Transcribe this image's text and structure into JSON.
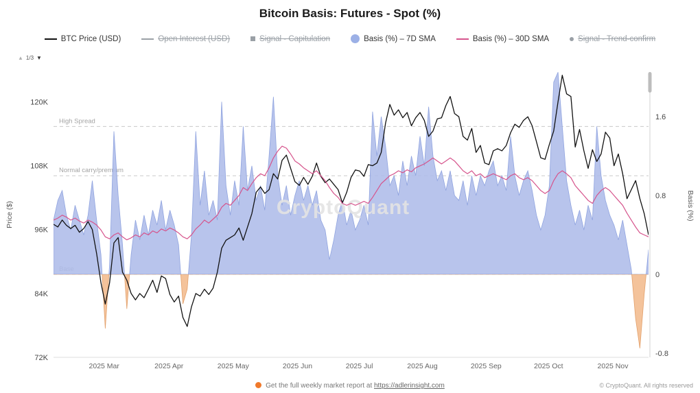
{
  "header": {
    "title": "Bitcoin Basis: Futures - Spot (%)"
  },
  "pager": {
    "up": "▲",
    "label": "1/3",
    "down": "▼"
  },
  "watermark": "CryptoQuant",
  "legend": {
    "position": "top",
    "items": [
      {
        "label": "BTC Price (USD)",
        "marker": "line",
        "color": "#111111",
        "disabled": false
      },
      {
        "label": "Open Interest (USD)",
        "marker": "line",
        "color": "#9aa0a6",
        "disabled": true
      },
      {
        "label": "Signal - Capitulation",
        "marker": "square",
        "color": "#9aa0a6",
        "disabled": true
      },
      {
        "label": "Basis (%) – 7D SMA",
        "marker": "circle",
        "color": "#9cb0e6",
        "disabled": false
      },
      {
        "label": "Basis (%) – 30D SMA",
        "marker": "line",
        "color": "#d6548c",
        "disabled": false
      },
      {
        "label": "Signal - Trend-confirm",
        "marker": "dot",
        "color": "#9aa0a6",
        "disabled": true
      }
    ]
  },
  "footer": {
    "report_text": "Get the full weekly market report at ",
    "report_link": "https://adlerinsight.com",
    "copyright": "© CryptoQuant. All rights reserved"
  },
  "chart_data": {
    "type": "mixed",
    "title": "Bitcoin Basis: Futures - Spot (%)",
    "grid": "levels-only",
    "left_axis": {
      "label": "Price ($)",
      "ticks": [
        "120K",
        "108K",
        "96K",
        "84K",
        "72K"
      ],
      "tick_values": [
        120,
        108,
        96,
        84,
        72
      ],
      "domain": [
        72,
        125.6
      ]
    },
    "right_axis": {
      "label": "Basis (%)",
      "ticks": [
        "1.6",
        "0.8",
        "0",
        "-0.8"
      ],
      "tick_values": [
        1.6,
        0.8,
        0,
        -0.8
      ],
      "domain": [
        -0.842,
        2.052
      ]
    },
    "x_axis": {
      "ticks": [
        {
          "label": "2025 Mar",
          "f": 0.085
        },
        {
          "label": "2025 Apr",
          "f": 0.194
        },
        {
          "label": "2025 May",
          "f": 0.302
        },
        {
          "label": "2025 Jun",
          "f": 0.41
        },
        {
          "label": "2025 Jul",
          "f": 0.514
        },
        {
          "label": "2025 Aug",
          "f": 0.62
        },
        {
          "label": "2025 Sep",
          "f": 0.727
        },
        {
          "label": "2025 Oct",
          "f": 0.832
        },
        {
          "label": "2025 Nov",
          "f": 0.94
        }
      ]
    },
    "levels": [
      {
        "label": "High Spread",
        "value": 1.5
      },
      {
        "label": "Normal carry/premium",
        "value": 1.0
      },
      {
        "label": "Base",
        "value": 0
      }
    ],
    "series": [
      {
        "name": "BTC Price (USD)",
        "type": "line",
        "axis": "price",
        "color": "#111111",
        "unit": "K USD",
        "values": [
          97.0,
          96.5,
          97.8,
          96.8,
          96.2,
          96.8,
          95.5,
          96.2,
          97.5,
          96.0,
          91.5,
          86.0,
          82.0,
          86.0,
          93.5,
          94.5,
          88.0,
          86.5,
          84.0,
          82.8,
          84.0,
          83.2,
          84.8,
          86.5,
          84.2,
          87.3,
          86.8,
          83.8,
          82.4,
          83.5,
          79.5,
          77.8,
          81.5,
          84.0,
          83.5,
          84.8,
          83.8,
          85.0,
          88.0,
          92.5,
          94.0,
          94.5,
          95.0,
          96.3,
          94.0,
          96.5,
          99.0,
          103.0,
          104.0,
          102.8,
          103.5,
          106.5,
          105.5,
          109.0,
          110.0,
          107.5,
          105.0,
          104.3,
          105.8,
          104.5,
          106.0,
          108.5,
          106.0,
          104.8,
          105.5,
          104.5,
          103.5,
          101.0,
          103.0,
          105.8,
          107.2,
          107.0,
          106.0,
          108.2,
          108.0,
          108.5,
          110.5,
          116.0,
          119.5,
          117.5,
          118.5,
          117.0,
          118.0,
          115.5,
          117.0,
          118.0,
          116.5,
          113.5,
          114.5,
          116.8,
          117.0,
          119.3,
          121.0,
          117.8,
          117.2,
          113.5,
          112.8,
          115.0,
          110.5,
          111.8,
          108.5,
          108.2,
          110.8,
          111.2,
          110.8,
          111.8,
          114.2,
          115.8,
          115.2,
          116.5,
          117.2,
          115.5,
          112.5,
          109.5,
          109.2,
          112.0,
          114.5,
          120.0,
          125.0,
          121.5,
          121.0,
          111.5,
          114.8,
          110.8,
          107.5,
          111.0,
          108.8,
          110.2,
          114.3,
          113.2,
          108.0,
          110.2,
          106.5,
          101.8,
          103.5,
          105.2,
          101.8,
          99.0,
          95.0
        ]
      },
      {
        "name": "Basis (%) – 7D SMA",
        "type": "area",
        "axis": "basis",
        "color": "#aebce9",
        "edge_color": "#8fa3df",
        "negative_color": "#f3c096",
        "unit": "%",
        "values": [
          0.55,
          0.75,
          0.85,
          0.6,
          0.45,
          0.7,
          0.55,
          0.4,
          0.6,
          0.95,
          0.55,
          0.2,
          -0.55,
          0.1,
          1.45,
          0.8,
          0.3,
          -0.35,
          0.2,
          0.55,
          0.35,
          0.6,
          0.4,
          0.65,
          0.5,
          0.75,
          0.45,
          0.65,
          0.5,
          0.3,
          -0.3,
          -0.15,
          0.4,
          1.45,
          0.7,
          1.05,
          0.6,
          0.75,
          0.55,
          1.75,
          0.9,
          0.6,
          0.95,
          0.7,
          1.5,
          0.85,
          1.1,
          0.75,
          0.9,
          0.65,
          1.2,
          1.8,
          1.0,
          0.7,
          0.9,
          0.6,
          0.8,
          0.95,
          0.75,
          0.9,
          0.7,
          0.85,
          0.55,
          0.45,
          0.15,
          0.35,
          0.6,
          0.75,
          0.5,
          0.65,
          0.45,
          0.55,
          0.7,
          0.5,
          1.65,
          1.2,
          1.6,
          1.3,
          0.9,
          1.0,
          0.8,
          1.15,
          0.9,
          1.2,
          1.0,
          1.4,
          1.1,
          1.7,
          1.2,
          0.95,
          1.05,
          0.85,
          1.05,
          0.8,
          0.75,
          0.95,
          0.7,
          1.0,
          0.8,
          1.0,
          0.9,
          1.05,
          1.15,
          0.9,
          1.0,
          0.85,
          1.4,
          1.0,
          0.8,
          0.95,
          1.05,
          0.85,
          0.6,
          0.45,
          0.6,
          0.9,
          1.95,
          2.05,
          1.5,
          0.95,
          0.7,
          0.5,
          0.65,
          0.45,
          0.7,
          0.55,
          1.5,
          1.0,
          0.75,
          0.6,
          0.5,
          0.35,
          0.55,
          0.3,
          0.05,
          -0.45,
          -0.75,
          -0.2,
          0.25
        ]
      },
      {
        "name": "Basis (%) – 30D SMA",
        "type": "line",
        "axis": "basis",
        "color": "#d6548c",
        "unit": "%",
        "values": [
          0.55,
          0.57,
          0.6,
          0.58,
          0.55,
          0.57,
          0.54,
          0.52,
          0.55,
          0.53,
          0.5,
          0.45,
          0.38,
          0.36,
          0.4,
          0.42,
          0.38,
          0.35,
          0.37,
          0.4,
          0.38,
          0.42,
          0.4,
          0.44,
          0.42,
          0.46,
          0.44,
          0.47,
          0.45,
          0.42,
          0.38,
          0.36,
          0.4,
          0.46,
          0.5,
          0.55,
          0.52,
          0.56,
          0.6,
          0.68,
          0.72,
          0.7,
          0.75,
          0.8,
          0.88,
          0.85,
          0.92,
          0.98,
          1.02,
          1.0,
          1.08,
          1.18,
          1.25,
          1.3,
          1.28,
          1.22,
          1.15,
          1.12,
          1.08,
          1.05,
          1.02,
          1.05,
          1.0,
          0.95,
          0.88,
          0.82,
          0.78,
          0.72,
          0.7,
          0.72,
          0.7,
          0.72,
          0.74,
          0.72,
          0.78,
          0.85,
          0.92,
          0.96,
          1.0,
          1.02,
          1.05,
          1.03,
          1.06,
          1.04,
          1.08,
          1.1,
          1.12,
          1.15,
          1.18,
          1.15,
          1.12,
          1.15,
          1.18,
          1.15,
          1.1,
          1.05,
          1.02,
          1.05,
          1.0,
          1.02,
          0.98,
          1.0,
          1.02,
          1.0,
          0.98,
          0.96,
          1.0,
          1.02,
          0.98,
          0.96,
          0.98,
          0.95,
          0.9,
          0.85,
          0.82,
          0.85,
          0.95,
          1.02,
          1.05,
          1.02,
          0.98,
          0.9,
          0.85,
          0.8,
          0.75,
          0.72,
          0.8,
          0.85,
          0.88,
          0.85,
          0.8,
          0.75,
          0.7,
          0.62,
          0.55,
          0.48,
          0.42,
          0.4,
          0.38
        ]
      }
    ]
  }
}
